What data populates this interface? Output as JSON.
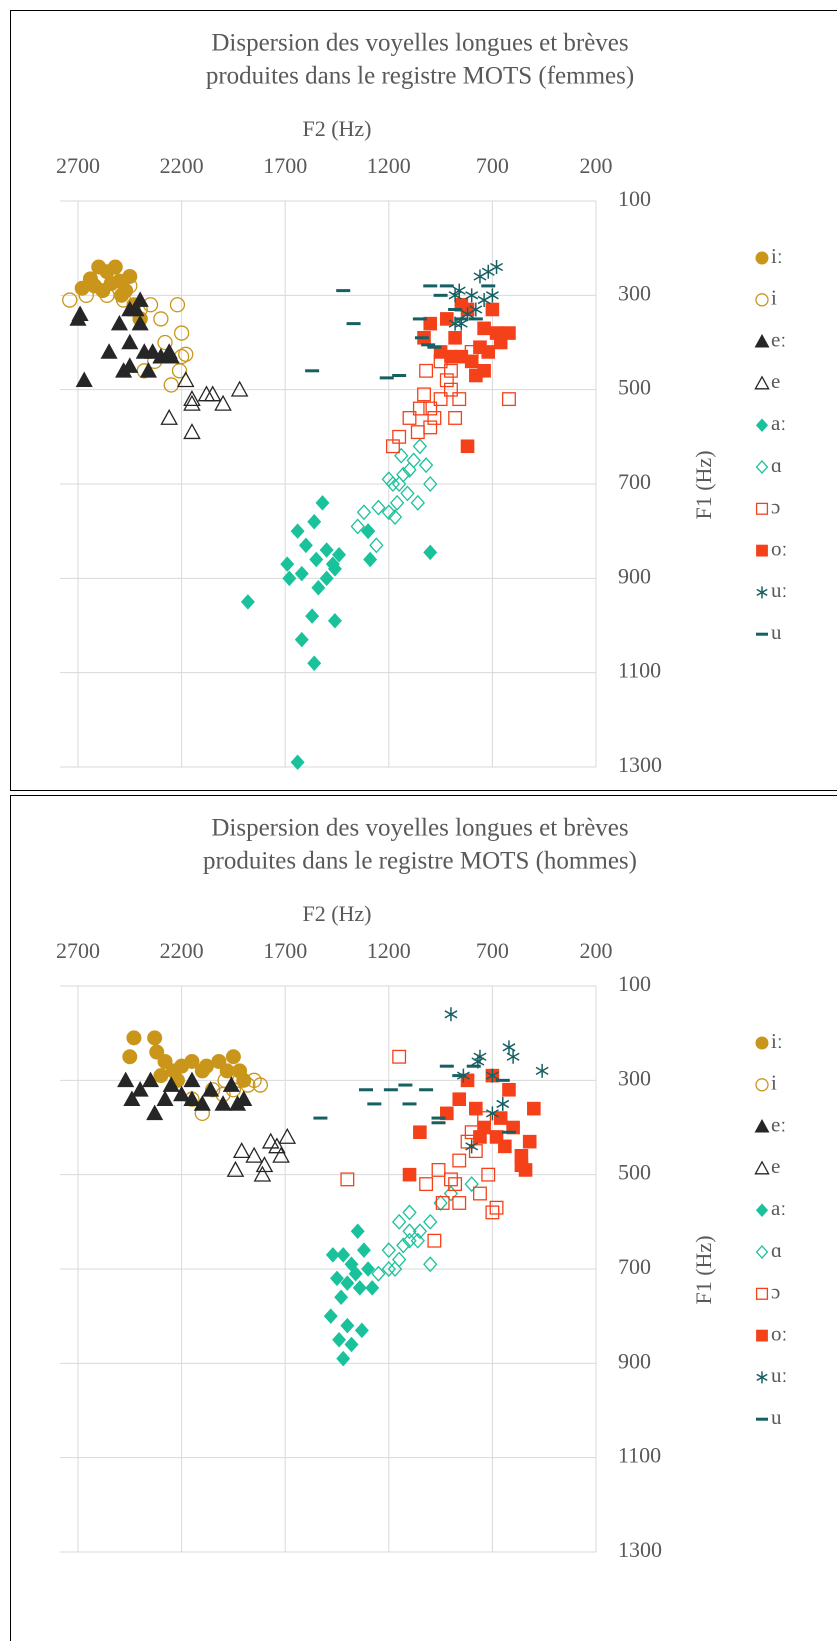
{
  "chart_data": [
    {
      "type": "scatter",
      "title": [
        "Dispersion des voyelles longues et brèves",
        "produites dans le registre MOTS (femmes)"
      ],
      "x_label": "F2 (Hz)",
      "y_label": "F1 (Hz)",
      "xlim": [
        200,
        2700
      ],
      "xticks": [
        2700,
        2200,
        1700,
        1200,
        700,
        200
      ],
      "x_reversed": true,
      "x_axis_position": "top",
      "ylim": [
        100,
        1300
      ],
      "yticks": [
        100,
        300,
        500,
        700,
        900,
        1100,
        1300
      ],
      "y_reversed": true,
      "y_axis_position": "right",
      "grid": true,
      "legend": "right",
      "series": [
        {
          "name": "iː",
          "color": "#c9961b",
          "marker": "circle",
          "x": [
            2640,
            2600,
            2560,
            2520,
            2580,
            2500,
            2470,
            2450,
            2620,
            2540,
            2430,
            2400,
            2680,
            2490
          ],
          "values": [
            265,
            240,
            250,
            240,
            290,
            270,
            290,
            260,
            280,
            275,
            320,
            350,
            285,
            300
          ]
        },
        {
          "name": "i",
          "color": "#c9961b",
          "marker": "circle-open",
          "x": [
            2740,
            2660,
            2560,
            2480,
            2450,
            2400,
            2350,
            2300,
            2280,
            2200,
            2220,
            2180,
            2250,
            2330,
            2380,
            2400,
            2200,
            2210
          ],
          "values": [
            310,
            300,
            300,
            310,
            280,
            350,
            320,
            350,
            400,
            380,
            320,
            425,
            490,
            440,
            460,
            330,
            430,
            460
          ]
        },
        {
          "name": "eː",
          "color": "#262626",
          "marker": "triangle",
          "x": [
            2690,
            2700,
            2670,
            2550,
            2480,
            2450,
            2450,
            2400,
            2380,
            2360,
            2340,
            2300,
            2260,
            2400,
            2450,
            2420,
            2250,
            2500
          ],
          "values": [
            340,
            350,
            480,
            420,
            460,
            450,
            400,
            360,
            420,
            460,
            420,
            430,
            420,
            310,
            330,
            330,
            430,
            360
          ]
        },
        {
          "name": "e",
          "color": "#262626",
          "marker": "triangle-open",
          "x": [
            2260,
            2180,
            2150,
            2150,
            2080,
            2050,
            2000,
            1920,
            2150
          ],
          "values": [
            560,
            480,
            590,
            520,
            510,
            510,
            530,
            500,
            530
          ]
        },
        {
          "name": "aː",
          "color": "#19c29b",
          "marker": "diamond",
          "x": [
            1640,
            1880,
            1690,
            1680,
            1620,
            1560,
            1570,
            1460,
            1600,
            1560,
            1520,
            1550,
            1500,
            1470,
            1440,
            1500,
            1460,
            1620,
            1640,
            1300,
            1290,
            1000,
            1540
          ],
          "values": [
            1290,
            950,
            870,
            900,
            1030,
            1080,
            980,
            990,
            830,
            780,
            740,
            860,
            840,
            870,
            850,
            900,
            880,
            890,
            800,
            800,
            860,
            845,
            920
          ]
        },
        {
          "name": "ɑ",
          "color": "#19c29b",
          "marker": "diamond-open",
          "x": [
            1350,
            1320,
            1300,
            1260,
            1250,
            1200,
            1160,
            1150,
            1130,
            1100,
            1080,
            1050,
            1000,
            1060,
            1200,
            1180,
            1140,
            1110,
            1020,
            1170
          ],
          "values": [
            790,
            760,
            800,
            830,
            750,
            760,
            740,
            700,
            680,
            670,
            650,
            620,
            700,
            740,
            690,
            700,
            640,
            720,
            660,
            770
          ]
        },
        {
          "name": "ɔ",
          "color": "#f5411a",
          "marker": "square-open",
          "x": [
            1180,
            1150,
            1100,
            1050,
            1000,
            1030,
            980,
            950,
            920,
            900,
            880,
            860,
            1020,
            950,
            620,
            900,
            1000,
            800,
            1060
          ],
          "values": [
            620,
            600,
            560,
            540,
            580,
            510,
            560,
            520,
            480,
            460,
            560,
            520,
            460,
            440,
            520,
            500,
            540,
            420,
            590
          ]
        },
        {
          "name": "oː",
          "color": "#f5411a",
          "marker": "square",
          "x": [
            1030,
            1000,
            950,
            920,
            880,
            850,
            820,
            800,
            760,
            740,
            720,
            700,
            680,
            660,
            620,
            780,
            740,
            820,
            850,
            900
          ],
          "values": [
            390,
            360,
            420,
            350,
            390,
            320,
            330,
            440,
            410,
            370,
            420,
            330,
            380,
            400,
            380,
            470,
            460,
            620,
            430,
            430
          ]
        },
        {
          "name": "uː",
          "color": "#166063",
          "marker": "asterisk",
          "x": [
            880,
            860,
            800,
            760,
            720,
            680,
            740,
            700,
            780,
            850,
            880,
            820
          ],
          "values": [
            300,
            290,
            300,
            260,
            250,
            240,
            310,
            300,
            330,
            360,
            360,
            340
          ]
        },
        {
          "name": "u",
          "color": "#166063",
          "marker": "dash",
          "x": [
            1570,
            1420,
            1370,
            1210,
            1150,
            1000,
            1050,
            1040,
            1010,
            980,
            920,
            950,
            880,
            850,
            780,
            720
          ],
          "values": [
            460,
            290,
            360,
            475,
            470,
            280,
            350,
            390,
            405,
            410,
            280,
            300,
            330,
            350,
            350,
            280
          ]
        }
      ]
    },
    {
      "type": "scatter",
      "title": [
        "Dispersion des voyelles longues et brèves",
        "produites dans le registre MOTS (hommes)"
      ],
      "x_label": "F2 (Hz)",
      "y_label": "F1 (Hz)",
      "xlim": [
        200,
        2700
      ],
      "xticks": [
        2700,
        2200,
        1700,
        1200,
        700,
        200
      ],
      "x_reversed": true,
      "x_axis_position": "top",
      "ylim": [
        100,
        1300
      ],
      "yticks": [
        100,
        300,
        500,
        700,
        900,
        1100,
        1300
      ],
      "y_reversed": true,
      "y_axis_position": "right",
      "grid": true,
      "legend": "right",
      "series": [
        {
          "name": "iː",
          "color": "#c9961b",
          "marker": "circle",
          "x": [
            2450,
            2430,
            2330,
            2320,
            2280,
            2240,
            2200,
            2150,
            2100,
            2080,
            2020,
            1980,
            1950,
            1920,
            1900,
            2220,
            2300
          ],
          "values": [
            250,
            210,
            210,
            240,
            260,
            280,
            270,
            260,
            280,
            270,
            260,
            280,
            250,
            280,
            300,
            300,
            290
          ]
        },
        {
          "name": "i",
          "color": "#c9961b",
          "marker": "circle-open",
          "x": [
            2050,
            2000,
            1950,
            1880,
            1850,
            1820,
            2150,
            2100,
            1920,
            1990
          ],
          "values": [
            320,
            330,
            320,
            310,
            300,
            310,
            340,
            370,
            300,
            300
          ]
        },
        {
          "name": "eː",
          "color": "#262626",
          "marker": "triangle",
          "x": [
            2470,
            2440,
            2400,
            2350,
            2330,
            2280,
            2250,
            2200,
            2150,
            2100,
            2060,
            2000,
            1960,
            1930,
            1900,
            2150
          ],
          "values": [
            300,
            340,
            320,
            300,
            370,
            340,
            310,
            330,
            340,
            350,
            320,
            350,
            310,
            350,
            340,
            300
          ]
        },
        {
          "name": "e",
          "color": "#262626",
          "marker": "triangle-open",
          "x": [
            1940,
            1910,
            1850,
            1810,
            1800,
            1770,
            1740,
            1720,
            1690
          ],
          "values": [
            490,
            450,
            460,
            500,
            480,
            430,
            440,
            460,
            420
          ]
        },
        {
          "name": "aː",
          "color": "#19c29b",
          "marker": "diamond",
          "x": [
            1480,
            1440,
            1420,
            1380,
            1330,
            1400,
            1430,
            1470,
            1420,
            1380,
            1350,
            1320,
            1300,
            1280,
            1450,
            1400,
            1360,
            1340
          ],
          "values": [
            800,
            850,
            890,
            860,
            830,
            820,
            760,
            670,
            670,
            690,
            620,
            660,
            700,
            740,
            720,
            730,
            710,
            740
          ]
        },
        {
          "name": "ɑ",
          "color": "#19c29b",
          "marker": "diamond-open",
          "x": [
            1250,
            1200,
            1170,
            1150,
            1130,
            1100,
            1050,
            1000,
            950,
            900,
            1000,
            1150,
            1100,
            1060,
            800,
            1200,
            1100
          ],
          "values": [
            710,
            700,
            700,
            680,
            650,
            640,
            620,
            600,
            560,
            540,
            690,
            600,
            580,
            640,
            520,
            660,
            620
          ]
        },
        {
          "name": "ɔ",
          "color": "#f5411a",
          "marker": "square-open",
          "x": [
            1400,
            1150,
            1020,
            960,
            900,
            860,
            820,
            780,
            760,
            720,
            700,
            680,
            940,
            880,
            860,
            980,
            800,
            740
          ],
          "values": [
            510,
            250,
            520,
            490,
            510,
            470,
            430,
            450,
            540,
            500,
            580,
            570,
            560,
            520,
            560,
            640,
            410,
            380
          ]
        },
        {
          "name": "oː",
          "color": "#f5411a",
          "marker": "square",
          "x": [
            1100,
            1050,
            920,
            860,
            820,
            780,
            740,
            700,
            680,
            660,
            620,
            600,
            560,
            540,
            520,
            500,
            640,
            760,
            560
          ],
          "values": [
            500,
            410,
            370,
            340,
            300,
            360,
            400,
            290,
            420,
            380,
            320,
            400,
            460,
            490,
            430,
            360,
            440,
            420,
            480
          ]
        },
        {
          "name": "uː",
          "color": "#166063",
          "marker": "asterisk",
          "x": [
            900,
            770,
            760,
            620,
            600,
            460,
            840,
            700,
            650,
            800,
            700
          ],
          "values": [
            160,
            260,
            250,
            230,
            250,
            280,
            290,
            290,
            350,
            440,
            370
          ]
        },
        {
          "name": "u",
          "color": "#166063",
          "marker": "dash",
          "x": [
            1530,
            1310,
            1270,
            1190,
            1120,
            1100,
            1020,
            960,
            920,
            860,
            790,
            650,
            620,
            960
          ],
          "values": [
            380,
            320,
            350,
            320,
            310,
            350,
            320,
            380,
            270,
            290,
            270,
            300,
            410,
            390
          ]
        }
      ]
    }
  ]
}
